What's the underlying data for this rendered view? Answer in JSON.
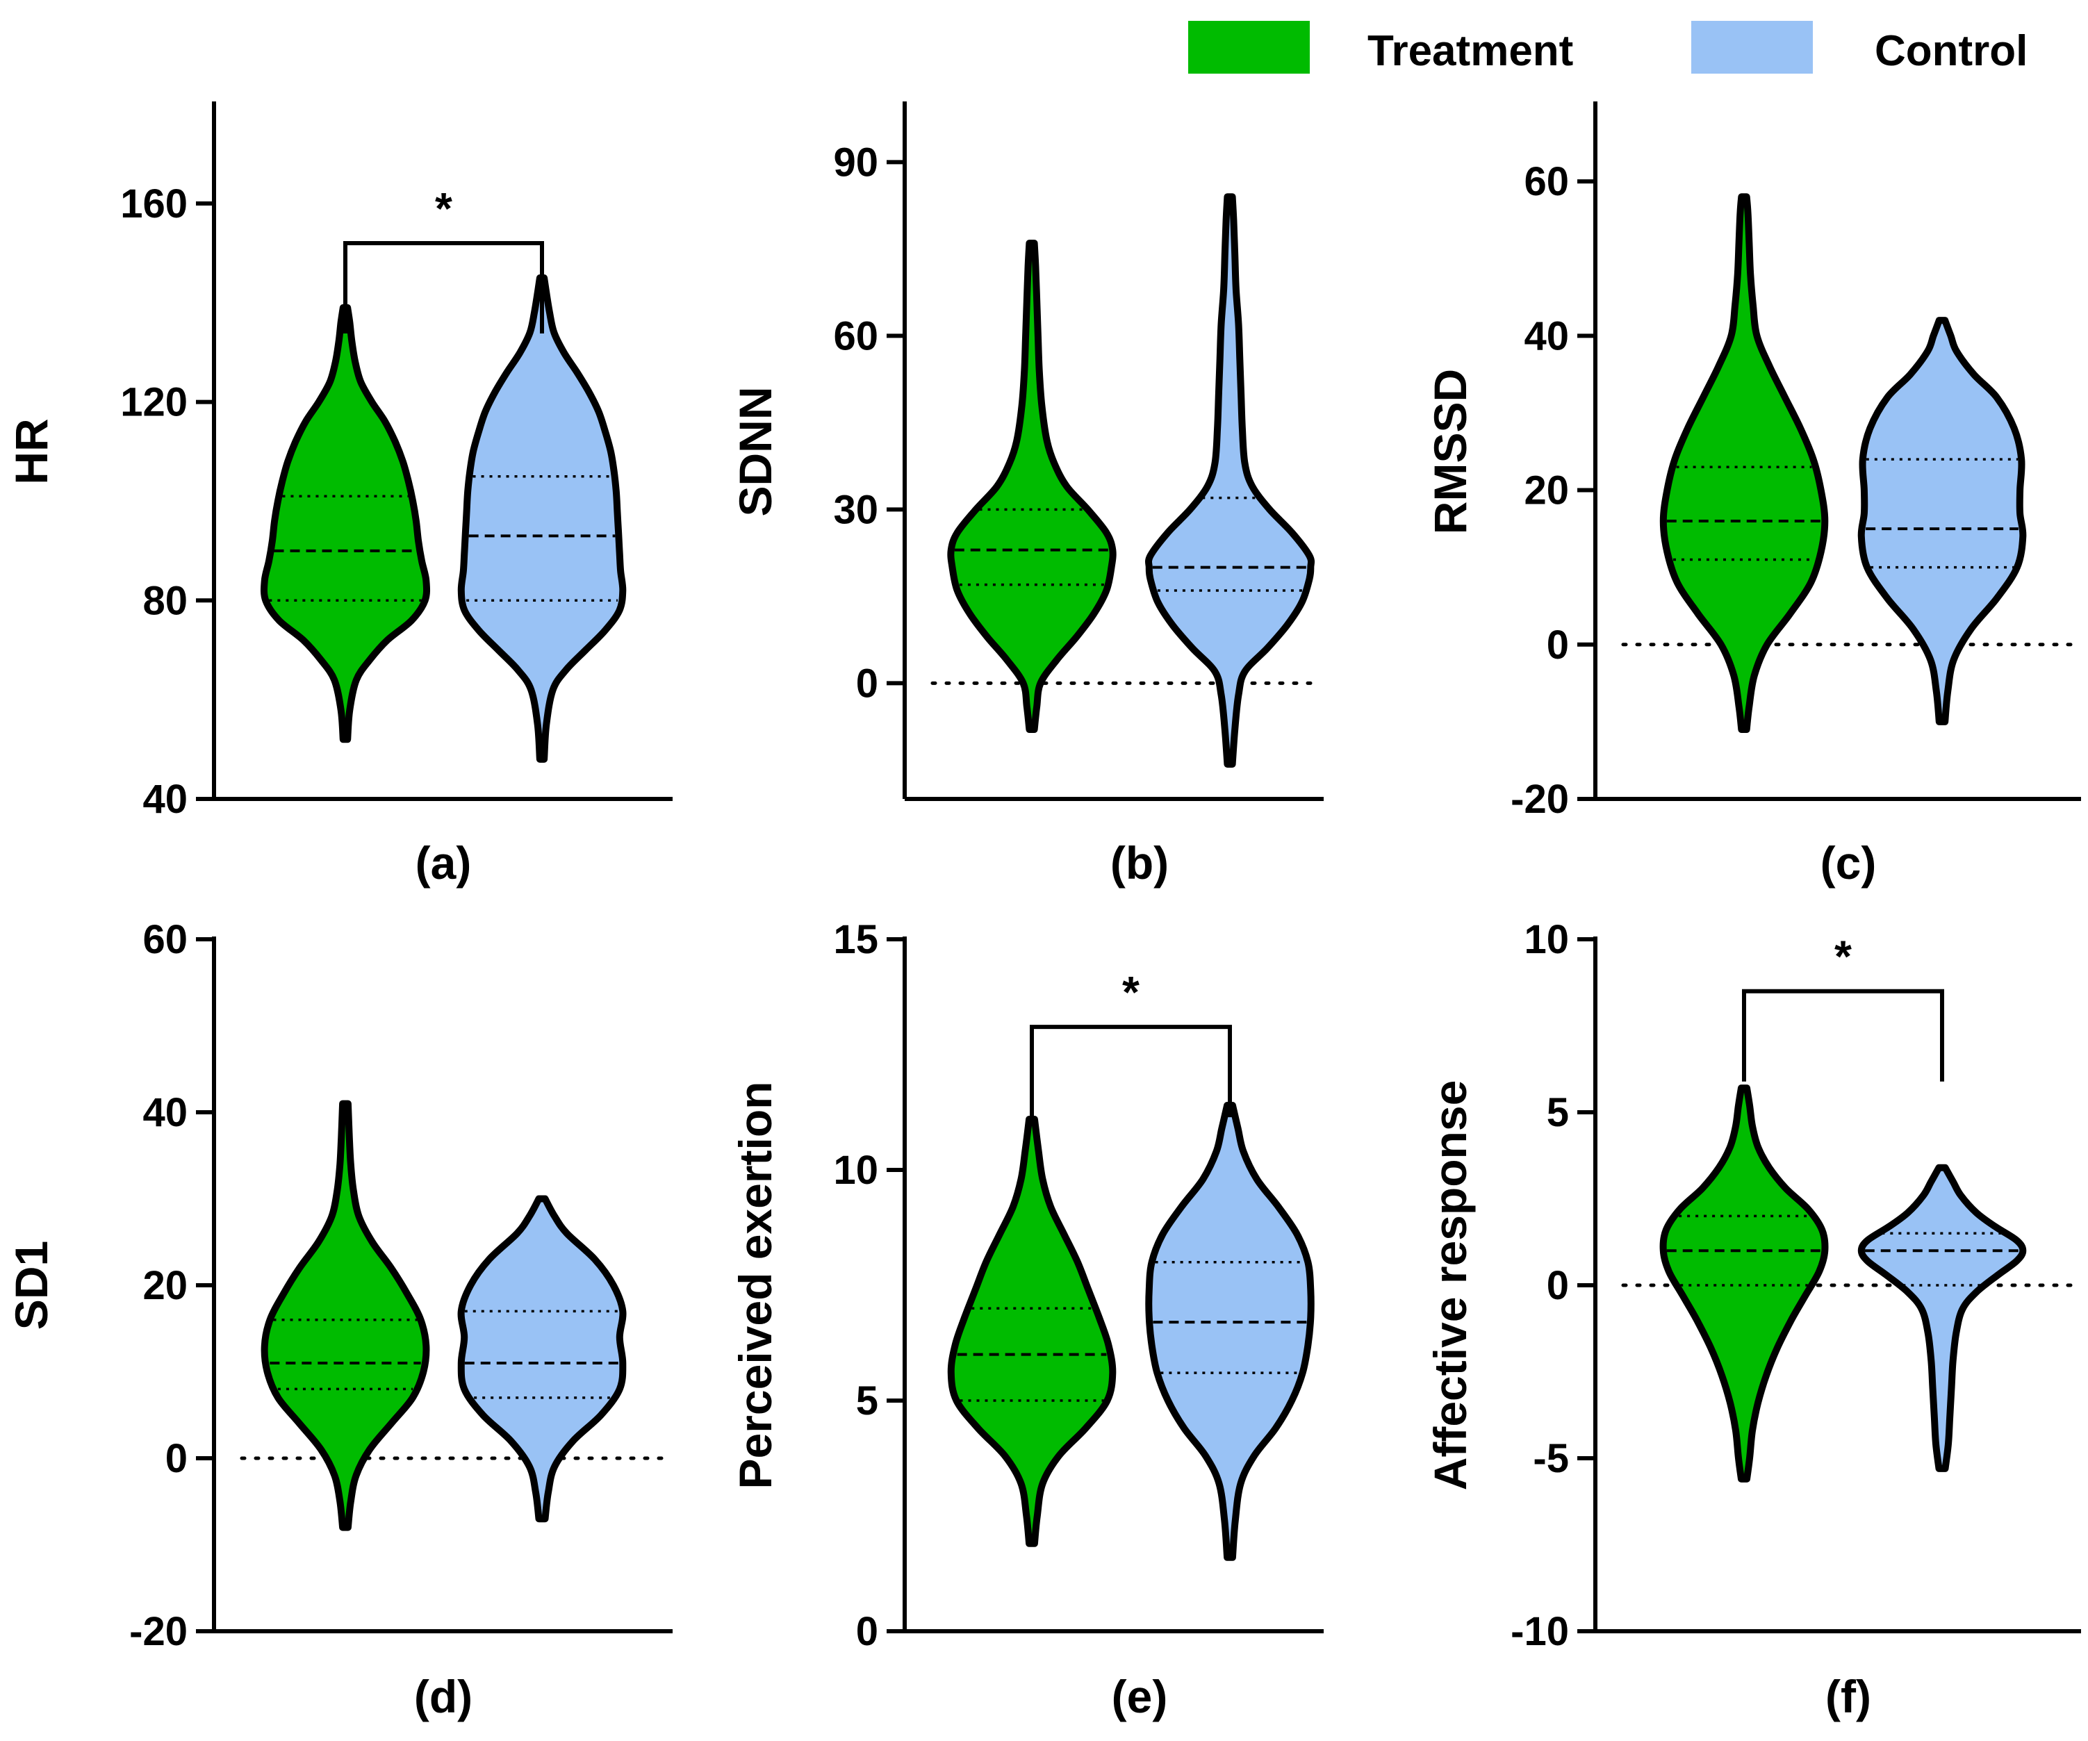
{
  "legend": {
    "items": [
      {
        "label": "Treatment",
        "color": "#00bb00"
      },
      {
        "label": "Control",
        "color": "#99c2f5"
      }
    ]
  },
  "colors": {
    "treatment": "#00bb00",
    "control": "#99c2f5",
    "outline": "#000000"
  },
  "chart_data": [
    {
      "type": "violin",
      "panel": "(a)",
      "ylabel": "HR",
      "ylim": [
        40,
        180
      ],
      "yticks": [
        40,
        80,
        120,
        160
      ],
      "yticks_labels": [
        "40",
        "80",
        "120",
        "160"
      ],
      "zero_line": false,
      "significance": {
        "shown": true,
        "label": "*",
        "bracket_y": 152
      },
      "series": [
        {
          "name": "Treatment",
          "min": 52,
          "max": 139,
          "median": 90,
          "q1": 80,
          "q3": 101,
          "profile": [
            [
              52,
              2
            ],
            [
              58,
              4
            ],
            [
              64,
              10
            ],
            [
              68,
              22
            ],
            [
              72,
              38
            ],
            [
              76,
              60
            ],
            [
              80,
              72
            ],
            [
              84,
              73
            ],
            [
              88,
              69
            ],
            [
              92,
              66
            ],
            [
              96,
              64
            ],
            [
              100,
              61
            ],
            [
              104,
              57
            ],
            [
              108,
              52
            ],
            [
              112,
              45
            ],
            [
              116,
              36
            ],
            [
              120,
              24
            ],
            [
              124,
              14
            ],
            [
              128,
              9
            ],
            [
              132,
              6
            ],
            [
              136,
              4
            ],
            [
              139,
              2
            ]
          ]
        },
        {
          "name": "Control",
          "min": 48,
          "max": 145,
          "median": 93,
          "q1": 80,
          "q3": 105,
          "profile": [
            [
              48,
              2
            ],
            [
              55,
              4
            ],
            [
              62,
              10
            ],
            [
              66,
              22
            ],
            [
              70,
              40
            ],
            [
              74,
              58
            ],
            [
              78,
              71
            ],
            [
              82,
              74
            ],
            [
              86,
              72
            ],
            [
              90,
              71
            ],
            [
              94,
              70
            ],
            [
              98,
              69
            ],
            [
              102,
              68
            ],
            [
              106,
              66
            ],
            [
              110,
              63
            ],
            [
              114,
              58
            ],
            [
              118,
              52
            ],
            [
              122,
              43
            ],
            [
              126,
              32
            ],
            [
              130,
              20
            ],
            [
              134,
              11
            ],
            [
              138,
              7
            ],
            [
              142,
              4
            ],
            [
              145,
              2
            ]
          ]
        }
      ]
    },
    {
      "type": "violin",
      "panel": "(b)",
      "ylabel": "SDNN",
      "ylim": [
        -20,
        100
      ],
      "yticks": [
        0,
        30,
        60,
        90
      ],
      "yticks_labels": [
        "0",
        "30",
        "60",
        "90"
      ],
      "zero_line": true,
      "significance": {
        "shown": false
      },
      "series": [
        {
          "name": "Treatment",
          "min": -8,
          "max": 76,
          "median": 23,
          "q1": 17,
          "q3": 30,
          "profile": [
            [
              -8,
              2
            ],
            [
              -4,
              4
            ],
            [
              0,
              7
            ],
            [
              4,
              20
            ],
            [
              8,
              36
            ],
            [
              12,
              50
            ],
            [
              16,
              60
            ],
            [
              20,
              64
            ],
            [
              23,
              65
            ],
            [
              26,
              60
            ],
            [
              30,
              45
            ],
            [
              34,
              28
            ],
            [
              38,
              18
            ],
            [
              42,
              12
            ],
            [
              48,
              8
            ],
            [
              54,
              6
            ],
            [
              60,
              5
            ],
            [
              66,
              4
            ],
            [
              72,
              3
            ],
            [
              76,
              2
            ]
          ]
        },
        {
          "name": "Control",
          "min": -14,
          "max": 84,
          "median": 20,
          "q1": 16,
          "q3": 32,
          "profile": [
            [
              -14,
              2
            ],
            [
              -8,
              4
            ],
            [
              -2,
              7
            ],
            [
              2,
              12
            ],
            [
              6,
              30
            ],
            [
              10,
              46
            ],
            [
              14,
              58
            ],
            [
              18,
              64
            ],
            [
              20,
              65
            ],
            [
              22,
              64
            ],
            [
              26,
              50
            ],
            [
              30,
              32
            ],
            [
              34,
              18
            ],
            [
              38,
              12
            ],
            [
              44,
              10
            ],
            [
              50,
              9
            ],
            [
              56,
              8
            ],
            [
              62,
              7
            ],
            [
              68,
              5
            ],
            [
              74,
              4
            ],
            [
              80,
              3
            ],
            [
              84,
              2
            ]
          ]
        }
      ]
    },
    {
      "type": "violin",
      "panel": "(c)",
      "ylabel": "RMSSD",
      "ylim": [
        -20,
        70
      ],
      "yticks": [
        -20,
        0,
        20,
        40,
        60
      ],
      "yticks_labels": [
        "-20",
        "0",
        "20",
        "40",
        "60"
      ],
      "zero_line": true,
      "significance": {
        "shown": false
      },
      "series": [
        {
          "name": "Treatment",
          "min": -11,
          "max": 58,
          "median": 16,
          "q1": 11,
          "q3": 23,
          "profile": [
            [
              -11,
              2
            ],
            [
              -8,
              4
            ],
            [
              -4,
              8
            ],
            [
              0,
              18
            ],
            [
              4,
              36
            ],
            [
              8,
              52
            ],
            [
              12,
              60
            ],
            [
              16,
              63
            ],
            [
              20,
              60
            ],
            [
              24,
              54
            ],
            [
              28,
              44
            ],
            [
              32,
              32
            ],
            [
              36,
              20
            ],
            [
              40,
              10
            ],
            [
              44,
              7
            ],
            [
              48,
              5
            ],
            [
              52,
              4
            ],
            [
              56,
              3
            ],
            [
              58,
              2
            ]
          ]
        },
        {
          "name": "Control",
          "min": -10,
          "max": 42,
          "median": 15,
          "q1": 10,
          "q3": 24,
          "profile": [
            [
              -10,
              2
            ],
            [
              -6,
              4
            ],
            [
              -2,
              8
            ],
            [
              2,
              20
            ],
            [
              6,
              38
            ],
            [
              10,
              52
            ],
            [
              14,
              56
            ],
            [
              17,
              54
            ],
            [
              20,
              54
            ],
            [
              24,
              55
            ],
            [
              28,
              50
            ],
            [
              32,
              38
            ],
            [
              35,
              22
            ],
            [
              38,
              10
            ],
            [
              40,
              6
            ],
            [
              42,
              2
            ]
          ]
        }
      ]
    },
    {
      "type": "violin",
      "panel": "(d)",
      "ylabel": "SD1",
      "ylim": [
        -20,
        60
      ],
      "yticks": [
        -20,
        0,
        20,
        40,
        60
      ],
      "yticks_labels": [
        "-20",
        "0",
        "20",
        "40",
        "60"
      ],
      "zero_line": true,
      "significance": {
        "shown": false
      },
      "series": [
        {
          "name": "Treatment",
          "min": -8,
          "max": 41,
          "median": 11,
          "q1": 8,
          "q3": 16,
          "profile": [
            [
              -8,
              2
            ],
            [
              -5,
              4
            ],
            [
              -2,
              8
            ],
            [
              1,
              18
            ],
            [
              4,
              34
            ],
            [
              7,
              50
            ],
            [
              10,
              58
            ],
            [
              13,
              60
            ],
            [
              16,
              56
            ],
            [
              19,
              46
            ],
            [
              22,
              34
            ],
            [
              25,
              20
            ],
            [
              28,
              10
            ],
            [
              31,
              6
            ],
            [
              34,
              4
            ],
            [
              37,
              3
            ],
            [
              41,
              2
            ]
          ]
        },
        {
          "name": "Control",
          "min": -7,
          "max": 30,
          "median": 11,
          "q1": 7,
          "q3": 17,
          "profile": [
            [
              -7,
              2
            ],
            [
              -4,
              4
            ],
            [
              -1,
              8
            ],
            [
              2,
              20
            ],
            [
              5,
              38
            ],
            [
              8,
              50
            ],
            [
              11,
              52
            ],
            [
              14,
              50
            ],
            [
              17,
              52
            ],
            [
              20,
              46
            ],
            [
              23,
              34
            ],
            [
              26,
              16
            ],
            [
              28,
              8
            ],
            [
              30,
              2
            ]
          ]
        }
      ]
    },
    {
      "type": "violin",
      "panel": "(e)",
      "ylabel": "Perceived exertion",
      "ylim": [
        0,
        15
      ],
      "yticks": [
        0,
        5,
        10,
        15
      ],
      "yticks_labels": [
        "0",
        "5",
        "10",
        "15"
      ],
      "zero_line": false,
      "significance": {
        "shown": true,
        "label": "*",
        "bracket_y": 13.1
      },
      "series": [
        {
          "name": "Treatment",
          "min": 1.9,
          "max": 11.1,
          "median": 6.0,
          "q1": 5.0,
          "q3": 7.0,
          "profile": [
            [
              1.9,
              2
            ],
            [
              2.5,
              4
            ],
            [
              3.2,
              8
            ],
            [
              3.8,
              20
            ],
            [
              4.4,
              40
            ],
            [
              5.0,
              56
            ],
            [
              5.6,
              60
            ],
            [
              6.2,
              57
            ],
            [
              6.8,
              50
            ],
            [
              7.4,
              42
            ],
            [
              8.0,
              34
            ],
            [
              8.6,
              24
            ],
            [
              9.2,
              14
            ],
            [
              9.8,
              8
            ],
            [
              10.4,
              5
            ],
            [
              11.1,
              2
            ]
          ]
        },
        {
          "name": "Control",
          "min": 1.6,
          "max": 11.4,
          "median": 6.7,
          "q1": 5.6,
          "q3": 8.0,
          "profile": [
            [
              1.6,
              2
            ],
            [
              2.4,
              4
            ],
            [
              3.2,
              8
            ],
            [
              3.8,
              18
            ],
            [
              4.4,
              34
            ],
            [
              5.0,
              46
            ],
            [
              5.6,
              54
            ],
            [
              6.2,
              58
            ],
            [
              6.8,
              60
            ],
            [
              7.4,
              60
            ],
            [
              8.0,
              58
            ],
            [
              8.6,
              50
            ],
            [
              9.2,
              36
            ],
            [
              9.8,
              20
            ],
            [
              10.4,
              10
            ],
            [
              10.9,
              6
            ],
            [
              11.4,
              2
            ]
          ]
        }
      ]
    },
    {
      "type": "violin",
      "panel": "(f)",
      "ylabel": "Affective response",
      "ylim": [
        -10,
        10
      ],
      "yticks": [
        -10,
        -5,
        0,
        5,
        10
      ],
      "yticks_labels": [
        "-10",
        "-5",
        "0",
        "5",
        "10"
      ],
      "zero_line": true,
      "significance": {
        "shown": true,
        "label": "*",
        "bracket_y": 8.5
      },
      "series": [
        {
          "name": "Treatment",
          "min": -5.6,
          "max": 5.7,
          "median": 1.0,
          "q1": 0.0,
          "q3": 2.0,
          "profile": [
            [
              -5.6,
              2
            ],
            [
              -5.0,
              4
            ],
            [
              -4.2,
              6
            ],
            [
              -3.4,
              10
            ],
            [
              -2.6,
              16
            ],
            [
              -1.8,
              24
            ],
            [
              -1.0,
              34
            ],
            [
              -0.3,
              44
            ],
            [
              0.4,
              54
            ],
            [
              1.0,
              58
            ],
            [
              1.6,
              56
            ],
            [
              2.2,
              46
            ],
            [
              2.8,
              30
            ],
            [
              3.4,
              18
            ],
            [
              4.0,
              10
            ],
            [
              4.6,
              6
            ],
            [
              5.2,
              4
            ],
            [
              5.7,
              2
            ]
          ]
        },
        {
          "name": "Control",
          "min": -5.3,
          "max": 3.4,
          "median": 1.0,
          "q1": 0.0,
          "q3": 1.5,
          "profile": [
            [
              -5.3,
              2
            ],
            [
              -4.6,
              4
            ],
            [
              -3.8,
              5
            ],
            [
              -3.0,
              6
            ],
            [
              -2.2,
              7
            ],
            [
              -1.4,
              9
            ],
            [
              -0.7,
              13
            ],
            [
              -0.2,
              22
            ],
            [
              0.3,
              36
            ],
            [
              0.7,
              48
            ],
            [
              1.0,
              52
            ],
            [
              1.3,
              48
            ],
            [
              1.7,
              34
            ],
            [
              2.1,
              22
            ],
            [
              2.6,
              12
            ],
            [
              3.0,
              7
            ],
            [
              3.4,
              2
            ]
          ]
        }
      ]
    }
  ]
}
